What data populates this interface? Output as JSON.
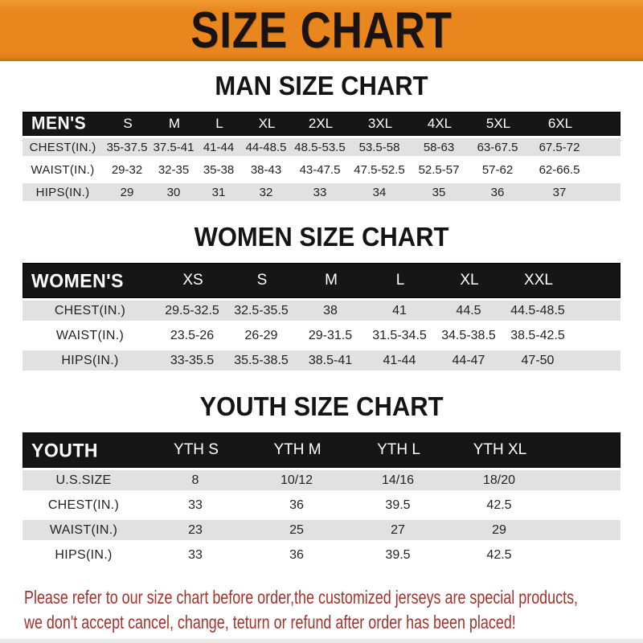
{
  "banner": {
    "title": "SIZE CHART",
    "bg_color": "#E9871E",
    "text_color": "#191412"
  },
  "chart_data": [
    {
      "type": "table",
      "title": "MAN SIZE CHART",
      "label": "MEN'S",
      "columns": [
        "S",
        "M",
        "L",
        "XL",
        "2XL",
        "3XL",
        "4XL",
        "5XL",
        "6XL"
      ],
      "rows": [
        {
          "label": "CHEST(IN.)",
          "values": [
            "35-37.5",
            "37.5-41",
            "41-44",
            "44-48.5",
            "48.5-53.5",
            "53.5-58",
            "58-63",
            "63-67.5",
            "67.5-72"
          ]
        },
        {
          "label": "WAIST(IN.)",
          "values": [
            "29-32",
            "32-35",
            "35-38",
            "38-43",
            "43-47.5",
            "47.5-52.5",
            "52.5-57",
            "57-62",
            "62-66.5"
          ]
        },
        {
          "label": "HIPS(IN.)",
          "values": [
            "29",
            "30",
            "31",
            "32",
            "33",
            "34",
            "35",
            "36",
            "37"
          ]
        }
      ]
    },
    {
      "type": "table",
      "title": "WOMEN SIZE CHART",
      "label": "WOMEN'S",
      "columns": [
        "XS",
        "S",
        "M",
        "L",
        "XL",
        "XXL"
      ],
      "rows": [
        {
          "label": "CHEST(IN.)",
          "values": [
            "29.5-32.5",
            "32.5-35.5",
            "38",
            "41",
            "44.5",
            "44.5-48.5"
          ]
        },
        {
          "label": "WAIST(IN.)",
          "values": [
            "23.5-26",
            "26-29",
            "29-31.5",
            "31.5-34.5",
            "34.5-38.5",
            "38.5-42.5"
          ]
        },
        {
          "label": "HIPS(IN.)",
          "values": [
            "33-35.5",
            "35.5-38.5",
            "38.5-41",
            "41-44",
            "44-47",
            "47-50"
          ]
        }
      ]
    },
    {
      "type": "table",
      "title": "YOUTH SIZE CHART",
      "label": "YOUTH",
      "columns": [
        "YTH S",
        "YTH M",
        "YTH L",
        "YTH XL"
      ],
      "rows": [
        {
          "label": "U.S.SIZE",
          "values": [
            "8",
            "10/12",
            "14/16",
            "18/20"
          ]
        },
        {
          "label": "CHEST(IN.)",
          "values": [
            "33",
            "36",
            "39.5",
            "42.5"
          ]
        },
        {
          "label": "WAIST(IN.)",
          "values": [
            "23",
            "25",
            "27",
            "29"
          ]
        },
        {
          "label": "HIPS(IN.)",
          "values": [
            "33",
            "36",
            "39.5",
            "42.5"
          ]
        }
      ]
    }
  ],
  "footer": {
    "line1": "Please refer to our size chart before order,the customized jerseys are special products,",
    "line2": "we don't accept cancel, change, teturn or refund after order has been placed!",
    "color": "#A5322A"
  }
}
